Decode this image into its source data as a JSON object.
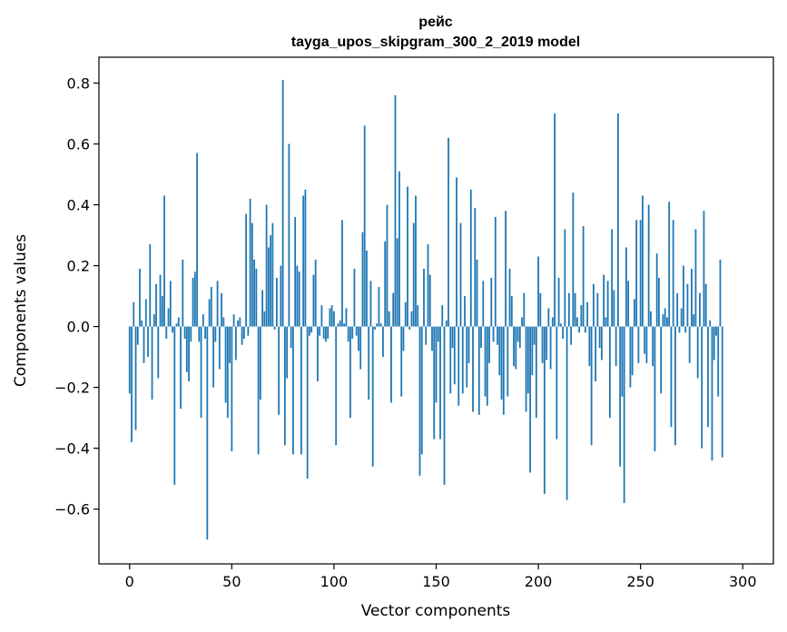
{
  "chart_data": {
    "type": "bar",
    "title": "рейс",
    "subtitle": "tayga_upos_skipgram_300_2_2019 model",
    "xlabel": "Vector components",
    "ylabel": "Components values",
    "xlim": [
      -15,
      315
    ],
    "ylim": [
      -0.78,
      0.885
    ],
    "xticks": [
      0,
      50,
      100,
      150,
      200,
      250,
      300
    ],
    "xtick_labels": [
      "0",
      "50",
      "100",
      "150",
      "200",
      "250",
      "300"
    ],
    "yticks": [
      -0.6,
      -0.4,
      -0.2,
      0.0,
      0.2,
      0.4,
      0.6,
      0.8
    ],
    "ytick_labels": [
      "−0.6",
      "−0.4",
      "−0.2",
      "0.0",
      "0.2",
      "0.4",
      "0.6",
      "0.8"
    ],
    "bar_color": "#1f77b4",
    "grid": false,
    "series": [
      {
        "values": [
          -0.22,
          -0.38,
          0.08,
          -0.34,
          -0.06,
          0.19,
          0.02,
          -0.12,
          0.09,
          -0.1,
          0.27,
          -0.24,
          0.04,
          0.14,
          -0.17,
          0.17,
          0.1,
          0.43,
          -0.04,
          0.06,
          0.15,
          -0.02,
          -0.52,
          0.01,
          0.03,
          -0.27,
          0.22,
          -0.04,
          -0.15,
          -0.18,
          -0.05,
          0.16,
          0.18,
          0.57,
          -0.05,
          -0.3,
          0.04,
          -0.04,
          -0.7,
          0.09,
          0.13,
          -0.2,
          -0.05,
          0.15,
          -0.14,
          0.11,
          0.03,
          -0.25,
          -0.3,
          -0.12,
          -0.41,
          0.04,
          -0.11,
          0.02,
          0.03,
          -0.06,
          -0.04,
          0.37,
          -0.03,
          0.42,
          0.34,
          0.22,
          0.19,
          -0.42,
          -0.24,
          0.12,
          0.05,
          0.4,
          0.26,
          0.3,
          0.34,
          -0.01,
          0.16,
          -0.29,
          0.2,
          0.81,
          -0.39,
          -0.17,
          0.6,
          -0.07,
          -0.42,
          0.36,
          0.2,
          0.18,
          -0.42,
          0.43,
          0.45,
          -0.5,
          -0.03,
          -0.02,
          0.17,
          0.22,
          -0.18,
          -0.03,
          0.07,
          -0.04,
          -0.05,
          -0.04,
          0.06,
          0.07,
          0.05,
          -0.39,
          0.01,
          0.02,
          0.35,
          0.01,
          0.06,
          -0.05,
          -0.3,
          -0.04,
          0.19,
          -0.03,
          -0.08,
          -0.14,
          0.31,
          0.66,
          0.25,
          -0.24,
          0.15,
          -0.46,
          -0.01,
          0.01,
          0.13,
          0.01,
          -0.1,
          0.28,
          0.4,
          0.05,
          -0.25,
          0.11,
          0.76,
          0.29,
          0.51,
          -0.23,
          -0.08,
          0.08,
          0.46,
          -0.01,
          0.05,
          0.34,
          0.43,
          0.07,
          -0.49,
          -0.42,
          0.19,
          -0.06,
          0.27,
          0.17,
          -0.08,
          -0.37,
          -0.25,
          -0.05,
          -0.37,
          0.07,
          -0.52,
          0.02,
          0.62,
          -0.22,
          -0.07,
          -0.19,
          0.49,
          -0.26,
          0.34,
          -0.22,
          0.1,
          -0.2,
          -0.12,
          0.45,
          -0.28,
          0.39,
          0.22,
          -0.29,
          -0.07,
          0.15,
          -0.23,
          -0.26,
          -0.12,
          0.16,
          -0.05,
          0.36,
          -0.06,
          -0.16,
          -0.24,
          -0.29,
          0.38,
          -0.23,
          0.19,
          0.1,
          -0.13,
          -0.14,
          -0.05,
          -0.07,
          0.03,
          0.11,
          -0.28,
          -0.22,
          -0.48,
          -0.16,
          -0.06,
          -0.3,
          0.23,
          0.11,
          -0.12,
          -0.55,
          -0.11,
          0.06,
          -0.14,
          0.03,
          0.7,
          -0.37,
          0.16,
          0.01,
          -0.04,
          0.32,
          -0.57,
          0.11,
          -0.06,
          0.44,
          0.11,
          0.03,
          -0.02,
          0.07,
          0.33,
          -0.02,
          0.08,
          -0.13,
          -0.39,
          0.14,
          -0.18,
          0.11,
          -0.07,
          -0.11,
          0.17,
          0.03,
          0.15,
          -0.3,
          0.32,
          0.12,
          -0.13,
          0.7,
          -0.46,
          -0.23,
          -0.58,
          0.26,
          0.15,
          -0.2,
          -0.16,
          0.09,
          0.35,
          -0.12,
          0.35,
          0.43,
          -0.09,
          -0.12,
          0.4,
          0.05,
          -0.13,
          -0.41,
          0.24,
          0.16,
          -0.22,
          0.04,
          0.06,
          0.03,
          0.41,
          -0.33,
          0.35,
          -0.39,
          0.11,
          -0.02,
          0.06,
          0.2,
          -0.02,
          0.14,
          -0.12,
          0.19,
          0.04,
          0.32,
          -0.17,
          0.11,
          -0.4,
          0.38,
          0.14,
          -0.33,
          0.02,
          -0.44,
          -0.11,
          -0.03,
          -0.23,
          0.22,
          -0.43
        ]
      }
    ]
  }
}
